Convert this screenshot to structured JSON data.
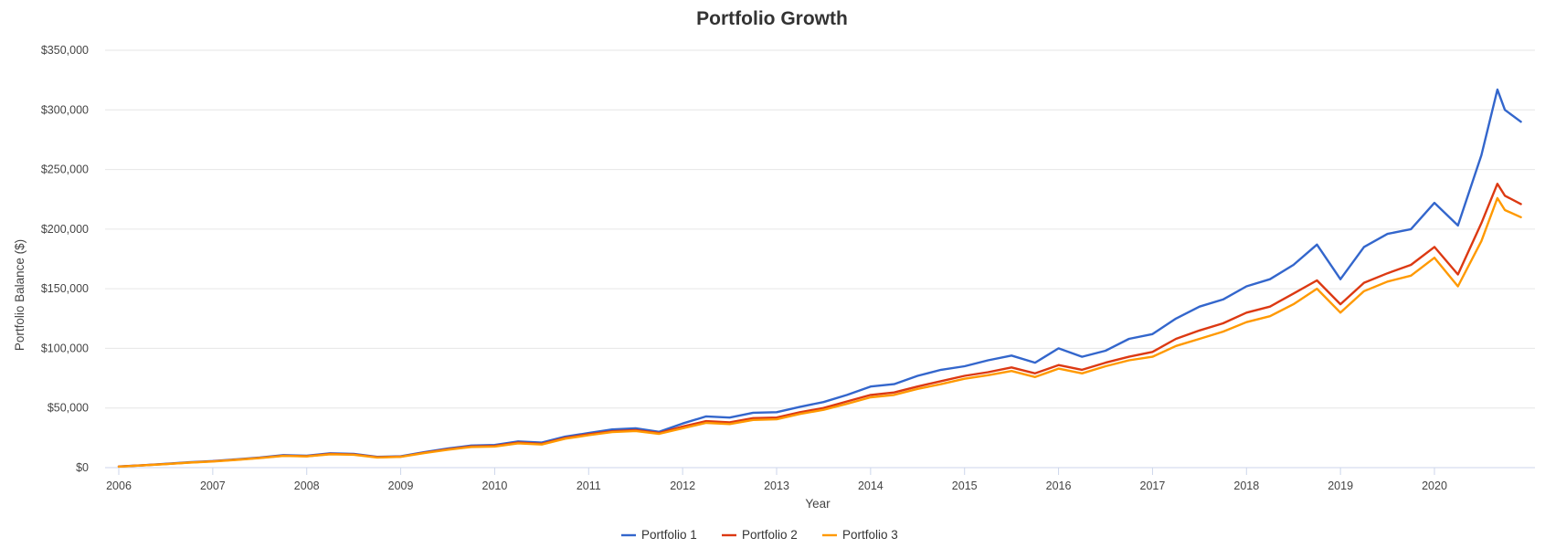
{
  "chart_data": {
    "type": "line",
    "title": "Portfolio Growth",
    "xlabel": "Year",
    "ylabel": "Portfolio Balance ($)",
    "xlim": [
      2006.0,
      2020.92
    ],
    "ylim": [
      0,
      350000
    ],
    "x_ticks": [
      "2006",
      "2007",
      "2008",
      "2009",
      "2010",
      "2011",
      "2012",
      "2013",
      "2014",
      "2015",
      "2016",
      "2017",
      "2018",
      "2019",
      "2020"
    ],
    "y_ticks": [
      "$0",
      "$50,000",
      "$100,000",
      "$150,000",
      "$200,000",
      "$250,000",
      "$300,000",
      "$350,000"
    ],
    "y_tick_values": [
      0,
      50000,
      100000,
      150000,
      200000,
      250000,
      300000,
      350000
    ],
    "grid": true,
    "legend_position": "bottom",
    "x": [
      2006.0,
      2006.25,
      2006.5,
      2006.75,
      2007.0,
      2007.25,
      2007.5,
      2007.75,
      2008.0,
      2008.25,
      2008.5,
      2008.75,
      2009.0,
      2009.25,
      2009.5,
      2009.75,
      2010.0,
      2010.25,
      2010.5,
      2010.75,
      2011.0,
      2011.25,
      2011.5,
      2011.75,
      2012.0,
      2012.25,
      2012.5,
      2012.75,
      2013.0,
      2013.25,
      2013.5,
      2013.75,
      2014.0,
      2014.25,
      2014.5,
      2014.75,
      2015.0,
      2015.25,
      2015.5,
      2015.75,
      2016.0,
      2016.25,
      2016.5,
      2016.75,
      2017.0,
      2017.25,
      2017.5,
      2017.75,
      2018.0,
      2018.25,
      2018.5,
      2018.75,
      2019.0,
      2019.25,
      2019.5,
      2019.75,
      2020.0,
      2020.25,
      2020.5,
      2020.67,
      2020.75,
      2020.92
    ],
    "series": [
      {
        "name": "Portfolio 1",
        "color": "#3366cc",
        "values": [
          1000,
          2000,
          3200,
          4500,
          5500,
          7000,
          8500,
          10500,
          10000,
          12000,
          11500,
          9000,
          9500,
          13000,
          16000,
          18500,
          19000,
          22000,
          21000,
          26000,
          29000,
          32000,
          33000,
          30000,
          37000,
          43000,
          42000,
          46000,
          46500,
          51000,
          55000,
          61000,
          68000,
          70000,
          77000,
          82000,
          85000,
          90000,
          94000,
          88000,
          100000,
          93000,
          98000,
          108000,
          112000,
          125000,
          135000,
          141000,
          152000,
          158000,
          170000,
          187000,
          158000,
          185000,
          196000,
          200000,
          222000,
          203000,
          262000,
          317000,
          300000,
          290000
        ]
      },
      {
        "name": "Portfolio 2",
        "color": "#dc3912",
        "values": [
          900,
          1900,
          3000,
          4300,
          5300,
          6700,
          8200,
          10000,
          9600,
          11500,
          11000,
          8700,
          9200,
          12500,
          15400,
          17800,
          18200,
          21000,
          20000,
          25000,
          28000,
          30500,
          31500,
          29000,
          34500,
          39000,
          38000,
          41500,
          42000,
          46500,
          50000,
          55500,
          61000,
          63000,
          68000,
          72500,
          77000,
          80000,
          84000,
          79000,
          86000,
          82000,
          88000,
          93000,
          97000,
          108000,
          115000,
          121000,
          130000,
          135000,
          146000,
          157000,
          137000,
          155000,
          163000,
          170000,
          185000,
          162000,
          205000,
          238000,
          228000,
          221000
        ]
      },
      {
        "name": "Portfolio 3",
        "color": "#ff9900",
        "values": [
          850,
          1850,
          2900,
          4200,
          5100,
          6500,
          8000,
          9800,
          9400,
          11200,
          10800,
          8500,
          9000,
          12200,
          15000,
          17300,
          17700,
          20400,
          19400,
          24300,
          27200,
          29800,
          30700,
          28300,
          33000,
          37500,
          36500,
          40000,
          40500,
          45000,
          48500,
          53500,
          59000,
          61000,
          66000,
          70000,
          74500,
          77500,
          81000,
          76000,
          83000,
          79000,
          85000,
          90000,
          93000,
          102000,
          108000,
          114000,
          122000,
          127000,
          137000,
          150000,
          130000,
          148000,
          156000,
          161000,
          176000,
          152000,
          190000,
          226000,
          216000,
          210000
        ]
      }
    ]
  }
}
